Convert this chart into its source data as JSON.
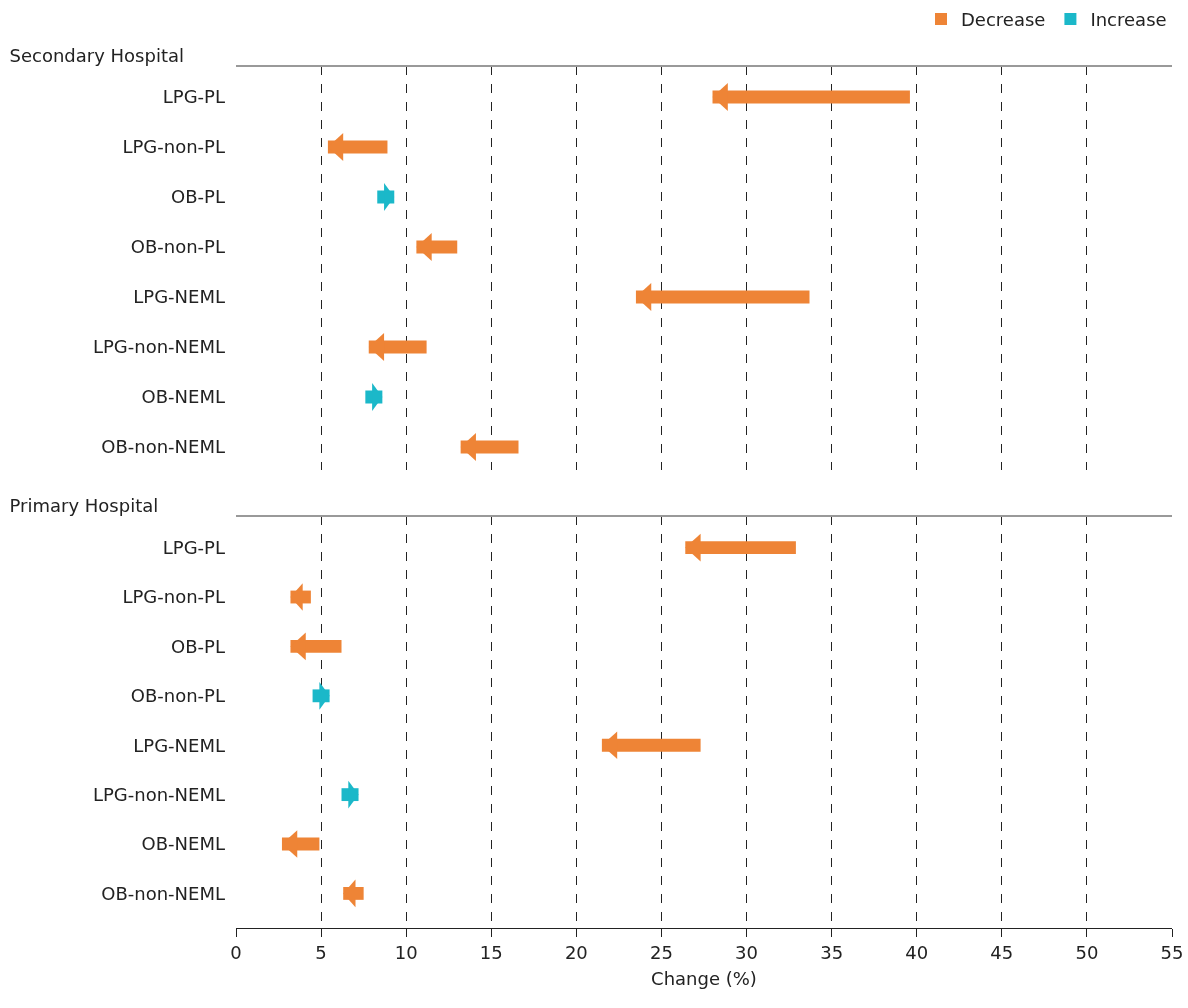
{
  "chart_data": [
    {
      "type": "bar",
      "orientation": "horizontal",
      "title": "Secondary Hospital",
      "categories": [
        "LPG-PL",
        "LPG-non-PL",
        "OB-PL",
        "OB-non-PL",
        "LPG-NEML",
        "LPG-non-NEML",
        "OB-NEML",
        "OB-non-NEML"
      ],
      "series": [
        {
          "name": "Decrease",
          "color": "#ee8436",
          "base": [
            28.0,
            5.4,
            null,
            10.6,
            23.5,
            7.8,
            null,
            13.2
          ],
          "values": [
            11.6,
            3.5,
            null,
            2.4,
            10.2,
            3.4,
            null,
            3.4
          ]
        },
        {
          "name": "Increase",
          "color": "#1bb8c9",
          "base": [
            null,
            null,
            8.3,
            null,
            null,
            null,
            7.6,
            null
          ],
          "values": [
            null,
            null,
            1.0,
            null,
            null,
            null,
            1.0,
            null
          ]
        }
      ],
      "xlim": [
        0,
        55
      ],
      "xticks": [
        0,
        5,
        10,
        15,
        20,
        25,
        30,
        35,
        40,
        45,
        50,
        55
      ],
      "tick_labels": "y",
      "grid": "x",
      "legend": "top right"
    },
    {
      "type": "bar",
      "orientation": "horizontal",
      "title": "Primary Hospital",
      "xlabel": "Change (%)",
      "categories": [
        "LPG-PL",
        "LPG-non-PL",
        "OB-PL",
        "OB-non-PL",
        "LPG-NEML",
        "LPG-non-NEML",
        "OB-NEML",
        "OB-non-NEML"
      ],
      "series": [
        {
          "color": "#ee8436",
          "base": [
            26.4,
            3.2,
            3.2,
            null,
            21.5,
            null,
            2.7,
            6.3
          ],
          "values": [
            6.5,
            1.2,
            3.0,
            null,
            5.8,
            null,
            2.2,
            1.2
          ]
        },
        {
          "color": "#1bb8c9",
          "base": [
            null,
            null,
            null,
            4.5,
            null,
            6.2,
            null,
            null
          ],
          "values": [
            null,
            null,
            null,
            1.0,
            null,
            1.0,
            null,
            null
          ]
        }
      ],
      "xlim": [
        0,
        55
      ],
      "xticks": [
        0,
        5,
        10,
        15,
        20,
        25,
        30,
        35,
        40,
        45,
        50,
        55
      ],
      "grid": "x"
    }
  ]
}
